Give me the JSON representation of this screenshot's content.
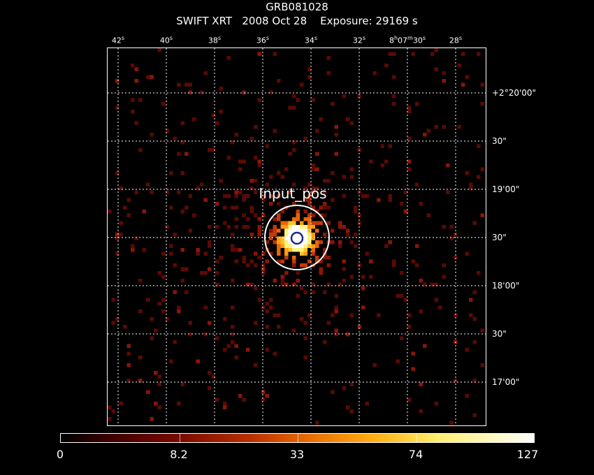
{
  "header": {
    "title": "GRB081028",
    "subtitle": "SWIFT XRT   2008 Oct 28    Exposure: 29169 s"
  },
  "ra_labels": [
    "42",
    "40",
    "38",
    "36",
    "34",
    "32",
    "8",
    "28"
  ],
  "ra_special": {
    "hours": "8",
    "minutes": "07",
    "seconds": "30"
  },
  "dec_labels": [
    "+2°20'00\"",
    "30\"",
    "19'00\"",
    "30\"",
    "18'00\"",
    "30\"",
    "17'00\""
  ],
  "region_label": "Input_pos",
  "colorbar": {
    "labels": [
      "0",
      "8.2",
      "33",
      "74",
      "127"
    ]
  },
  "colors": {
    "background": "#000000",
    "grid": "#ffffff",
    "source_core": "#ffffff",
    "marker_circle": "#1a2a8a"
  }
}
